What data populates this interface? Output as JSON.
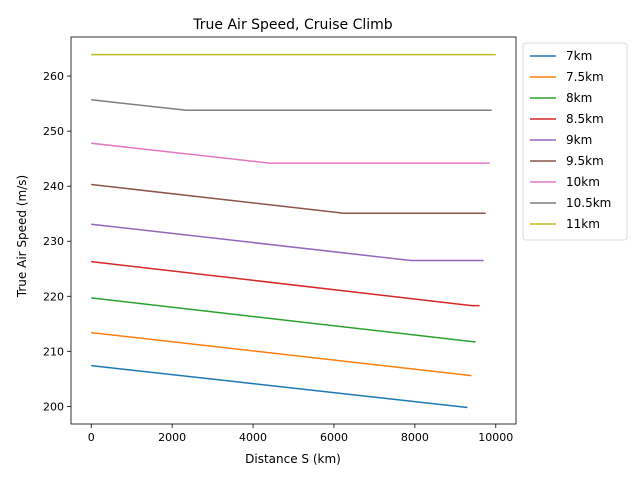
{
  "chart_data": {
    "type": "line",
    "title": "True Air Speed, Cruise Climb",
    "xlabel": "Distance S (km)",
    "ylabel": "True Air Speed (m/s)",
    "xlim": [
      -500,
      10500
    ],
    "ylim": [
      196.8,
      267.1
    ],
    "xticks": [
      0,
      2000,
      4000,
      6000,
      8000,
      10000
    ],
    "yticks": [
      200,
      210,
      220,
      230,
      240,
      250,
      260
    ],
    "grid": false,
    "legend_position": "outside-right-top",
    "series": [
      {
        "name": "7km",
        "color": "#1f77b4",
        "x": [
          0,
          9300
        ],
        "y": [
          207.4,
          199.8
        ]
      },
      {
        "name": "7.5km",
        "color": "#ff7f0e",
        "x": [
          0,
          9400
        ],
        "y": [
          213.4,
          205.6
        ]
      },
      {
        "name": "8km",
        "color": "#2ca02c",
        "x": [
          0,
          9500
        ],
        "y": [
          219.7,
          211.7
        ]
      },
      {
        "name": "8.5km",
        "color": "#d62728",
        "x": [
          0,
          9400,
          9600
        ],
        "y": [
          226.3,
          218.3,
          218.3
        ]
      },
      {
        "name": "9km",
        "color": "#9467bd",
        "x": [
          0,
          7900,
          9700
        ],
        "y": [
          233.1,
          226.5,
          226.5
        ]
      },
      {
        "name": "9.5km",
        "color": "#8c564b",
        "x": [
          0,
          6250,
          9750
        ],
        "y": [
          240.3,
          235.1,
          235.1
        ]
      },
      {
        "name": "10km",
        "color": "#e377c2",
        "x": [
          0,
          4400,
          9850
        ],
        "y": [
          247.8,
          244.2,
          244.2
        ]
      },
      {
        "name": "10.5km",
        "color": "#7f7f7f",
        "x": [
          0,
          2350,
          9900
        ],
        "y": [
          255.7,
          253.8,
          253.8
        ]
      },
      {
        "name": "11km",
        "color": "#bcbd22",
        "x": [
          0,
          10000
        ],
        "y": [
          263.9,
          263.9
        ]
      }
    ]
  }
}
